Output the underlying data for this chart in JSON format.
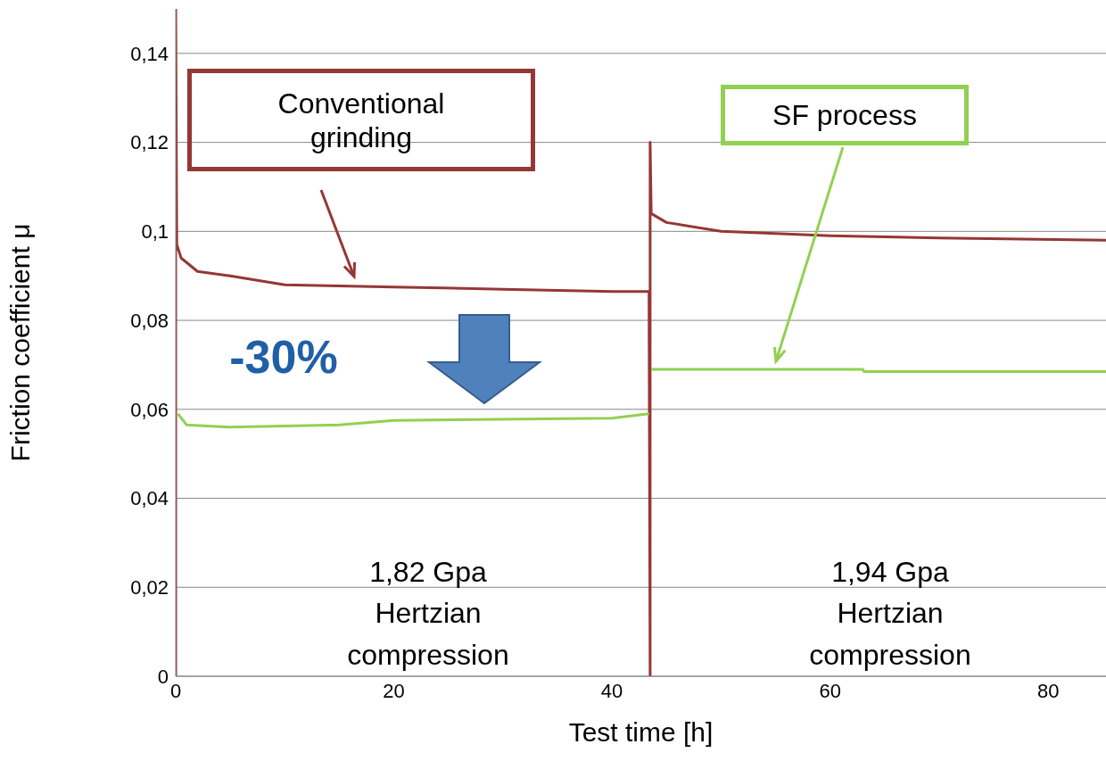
{
  "chart_data": {
    "type": "line",
    "xlabel": "Test time [h]",
    "ylabel": "Friction coefficient μ",
    "xlim": [
      0,
      85.3
    ],
    "xticks": [
      0,
      20,
      40,
      60,
      80
    ],
    "ylim": [
      0,
      0.15
    ],
    "yticks": [
      {
        "value": 0,
        "label": "0"
      },
      {
        "value": 0.02,
        "label": "0,02"
      },
      {
        "value": 0.04,
        "label": "0,04"
      },
      {
        "value": 0.06,
        "label": "0,06"
      },
      {
        "value": 0.08,
        "label": "0,08"
      },
      {
        "value": 0.1,
        "label": "0,1"
      },
      {
        "value": 0.12,
        "label": "0,12"
      },
      {
        "value": 0.14,
        "label": "0,14"
      }
    ],
    "grid": "y",
    "series": [
      {
        "color": "#953735",
        "x": [
          0,
          0,
          0.1,
          0.5,
          2,
          5,
          10,
          20,
          30,
          40,
          43.4,
          43.5,
          43.5,
          43.6,
          45,
          50,
          60,
          70,
          85.3
        ],
        "values": [
          0,
          0.15,
          0.097,
          0.094,
          0.091,
          0.09,
          0.088,
          0.0875,
          0.087,
          0.0865,
          0.0865,
          0,
          0.12,
          0.104,
          0.102,
          0.1,
          0.099,
          0.0985,
          0.098
        ]
      },
      {
        "color": "#92d050",
        "x": [
          0.2,
          1,
          5,
          15,
          20,
          40,
          43.4,
          43.5,
          43.6,
          63,
          63.1,
          85.3
        ],
        "values": [
          0.059,
          0.0565,
          0.056,
          0.0565,
          0.0575,
          0.058,
          0.059,
          null,
          0.069,
          0.069,
          0.0685,
          0.0685
        ]
      }
    ],
    "annotations": [
      "Conventional grinding",
      "SF process",
      "-30%",
      "1,82 Gpa\nHertzian\ncompression",
      "1,94 Gpa\nHertzian\ncompression"
    ]
  }
}
